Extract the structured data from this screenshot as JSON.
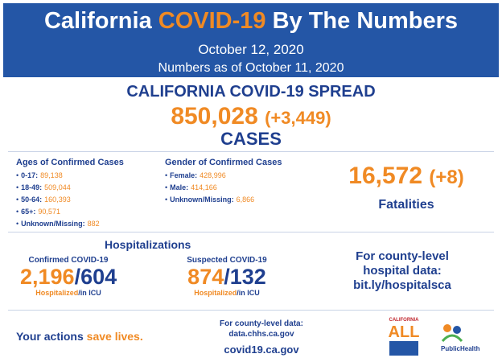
{
  "header": {
    "title_parts": [
      "California",
      "COVID-19",
      "By The Numbers"
    ],
    "date": "October 12, 2020",
    "as_of": "Numbers as of October 11, 2020"
  },
  "spread": {
    "title": "CALIFORNIA COVID-19 SPREAD",
    "cases": "850,028",
    "change": "(+3,449)",
    "label": "CASES"
  },
  "ages": {
    "title": "Ages of Confirmed Cases",
    "items": [
      [
        "0-17:",
        "89,138"
      ],
      [
        "18-49:",
        "509,044"
      ],
      [
        "50-64:",
        "160,393"
      ],
      [
        "65+:",
        "90,571"
      ],
      [
        "Unknown/Missing:",
        "882"
      ]
    ]
  },
  "gender": {
    "title": "Gender of Confirmed Cases",
    "items": [
      [
        "Female:",
        "428,996"
      ],
      [
        "Male:",
        "414,166"
      ],
      [
        "Unknown/Missing:",
        "6,866"
      ]
    ]
  },
  "fatalities": {
    "count": "16,572",
    "change": "(+8)",
    "label": "Fatalities"
  },
  "hospitalizations": {
    "title": "Hospitalizations",
    "groups": [
      {
        "label": "Confirmed COVID-19",
        "hospitalized": "2,196",
        "separator": "/",
        "icu": "604",
        "sub_hospitalized": "Hospitalized",
        "sub_icu": "/in ICU"
      },
      {
        "label": "Suspected COVID-19",
        "hospitalized": "874",
        "separator": "/",
        "icu": "132",
        "sub_hospitalized": "Hospitalized",
        "sub_icu": "/in ICU"
      }
    ]
  },
  "county_hospital": {
    "lines": [
      "For county-level",
      "hospital data:",
      "bit.ly/hospitalsca"
    ]
  },
  "footer": {
    "actions": "Your actions",
    "save": "save lives.",
    "county_label": "For county-level data:",
    "county_url": "data.chhs.ca.gov",
    "site": "covid19.ca.gov",
    "logo_top": "CALIFORNIA",
    "logo_main": "ALL",
    "logo_health": "PublicHealth"
  }
}
